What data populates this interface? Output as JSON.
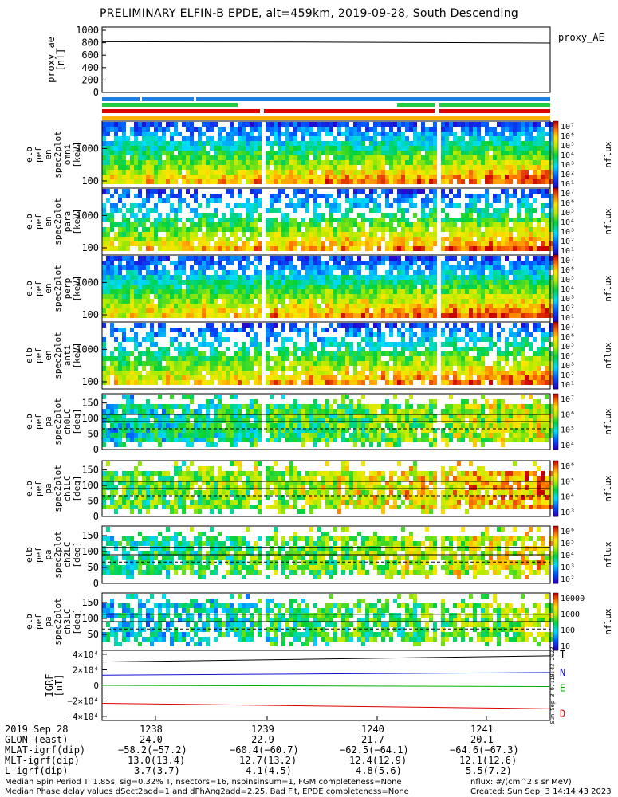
{
  "title": "PRELIMINARY ELFIN-B EPDE, alt=459km, 2019-09-28, South Descending",
  "colors": {
    "blue": "#1e7fe0",
    "green": "#22cc44",
    "red": "#dd0000",
    "N": "#1010d0",
    "E": "#00b000",
    "D": "#dd0000",
    "orange": "#ffb000"
  },
  "chart_data": [
    {
      "type": "line",
      "panel": "proxy_ae",
      "ylabel_lines": [
        "proxy_ae",
        "[nT]"
      ],
      "legend": "proxy_AE",
      "yticks": [
        "0",
        "200",
        "400",
        "600",
        "800",
        "1000"
      ],
      "ylim": [
        0,
        1000
      ],
      "series": [
        {
          "x": [
            0,
            0.5,
            1
          ],
          "values": [
            815,
            810,
            795
          ]
        }
      ]
    },
    {
      "type": "heatmap",
      "panel": "en-all",
      "ylabel_lines": [
        "elb",
        "pef",
        "en",
        "spec2plot",
        "omni",
        "[keV]"
      ],
      "yticks": [
        "100",
        "1000"
      ],
      "yscale": "log",
      "ylim": [
        60,
        7000
      ],
      "cbar_ticks": [
        "10⁷",
        "10⁶",
        "10⁵",
        "10⁴",
        "10³",
        "10²",
        "10¹"
      ],
      "cbar_label": "nflux"
    },
    {
      "type": "heatmap",
      "panel": "en-para",
      "ylabel_lines": [
        "elb",
        "pef",
        "en",
        "spec2plot",
        "para",
        "[keV]"
      ],
      "yticks": [
        "100",
        "1000"
      ],
      "yscale": "log",
      "ylim": [
        60,
        7000
      ],
      "cbar_ticks": [
        "10⁷",
        "10⁶",
        "10⁵",
        "10⁴",
        "10³",
        "10²",
        "10¹"
      ],
      "cbar_label": "nflux"
    },
    {
      "type": "heatmap",
      "panel": "en-perp",
      "ylabel_lines": [
        "elb",
        "pef",
        "en",
        "spec2plot",
        "perp",
        "[keV]"
      ],
      "yticks": [
        "100",
        "1000"
      ],
      "yscale": "log",
      "ylim": [
        60,
        7000
      ],
      "cbar_ticks": [
        "10⁷",
        "10⁶",
        "10⁵",
        "10⁴",
        "10³",
        "10²",
        "10¹"
      ],
      "cbar_label": "nflux"
    },
    {
      "type": "heatmap",
      "panel": "en-anti",
      "ylabel_lines": [
        "elb",
        "pef",
        "en",
        "spec2plot",
        "anti",
        "[keV]"
      ],
      "yticks": [
        "100",
        "1000"
      ],
      "yscale": "log",
      "ylim": [
        60,
        7000
      ],
      "cbar_ticks": [
        "10⁷",
        "10⁶",
        "10⁵",
        "10⁴",
        "10³",
        "10²",
        "10¹"
      ],
      "cbar_label": "nflux"
    },
    {
      "type": "heatmap",
      "panel": "pa-ch0",
      "ylabel_lines": [
        "elb",
        "pef",
        "pa",
        "spec2plot",
        "ch0LC",
        "[deg]"
      ],
      "yticks": [
        "0",
        "50",
        "100",
        "150"
      ],
      "ylim": [
        0,
        180
      ],
      "cbar_ticks": [
        "10⁷",
        "10⁶",
        "10⁵",
        "10⁴"
      ],
      "cbar_label": "nflux"
    },
    {
      "type": "heatmap",
      "panel": "pa-ch1",
      "ylabel_lines": [
        "elb",
        "pef",
        "pa",
        "spec2plot",
        "ch1LC",
        "[deg]"
      ],
      "yticks": [
        "0",
        "50",
        "100",
        "150"
      ],
      "ylim": [
        0,
        180
      ],
      "cbar_ticks": [
        "10⁶",
        "10⁵",
        "10⁴",
        "10³"
      ],
      "cbar_label": "nflux"
    },
    {
      "type": "heatmap",
      "panel": "pa-ch2",
      "ylabel_lines": [
        "elb",
        "pef",
        "pa",
        "spec2plot",
        "ch2LC",
        "[deg]"
      ],
      "yticks": [
        "0",
        "50",
        "100",
        "150"
      ],
      "ylim": [
        0,
        180
      ],
      "cbar_ticks": [
        "10⁶",
        "10⁵",
        "10⁴",
        "10³",
        "10²"
      ],
      "cbar_label": "nflux"
    },
    {
      "type": "heatmap",
      "panel": "pa-ch3",
      "ylabel_lines": [
        "elb",
        "pef",
        "pa",
        "spec2plot",
        "ch3LC",
        "[deg]"
      ],
      "yticks": [
        "50",
        "100",
        "150"
      ],
      "ylim": [
        0,
        180
      ],
      "cbar_ticks": [
        "10000",
        "1000",
        "100",
        "10"
      ],
      "cbar_label": "nflux"
    },
    {
      "type": "line",
      "panel": "igrf",
      "ylabel_lines": [
        "IGRF",
        "[nT]"
      ],
      "yticks": [
        "−4×10⁴",
        "−2×10⁴",
        "0",
        "2×10⁴",
        "4×10⁴"
      ],
      "ylim": [
        -45000,
        45000
      ],
      "series": [
        {
          "name": "T",
          "x": [
            0,
            1
          ],
          "values": [
            30000,
            38000
          ]
        },
        {
          "name": "N",
          "x": [
            0,
            1
          ],
          "values": [
            13000,
            16500
          ]
        },
        {
          "name": "E",
          "x": [
            0,
            1
          ],
          "values": [
            0,
            -1500
          ]
        },
        {
          "name": "D",
          "x": [
            0,
            1
          ],
          "values": [
            -23000,
            -30000
          ]
        }
      ],
      "side_text": "Sun Sep  3 07:18:43 2023"
    }
  ],
  "xaxis": {
    "rows": [
      {
        "label": "2019 Sep 28",
        "values": [
          "1238",
          "1239",
          "1240",
          "1241"
        ]
      },
      {
        "label": "GLON (east)",
        "values": [
          "24.0",
          "22.9",
          "21.7",
          "20.1"
        ]
      },
      {
        "label": "MLAT-igrf(dip)",
        "values": [
          "−58.2(−57.2)",
          "−60.4(−60.7)",
          "−62.5(−64.1)",
          "−64.6(−67.3)"
        ]
      },
      {
        "label": "MLT-igrf(dip)",
        "values": [
          "13.0(13.4)",
          "12.7(13.2)",
          "12.4(12.9)",
          "12.1(12.6)"
        ]
      },
      {
        "label": "L-igrf(dip)",
        "values": [
          "3.7(3.7)",
          "4.1(4.5)",
          "4.8(5.6)",
          "5.5(7.2)"
        ]
      }
    ]
  },
  "footer": {
    "line1_left": "Median Spin Period T: 1.85s, sig=0.32% T, nsectors=16, nspinsinsum=1, FGM completeness=None",
    "line2_left": "Median Phase delay values dSect2add=1 and dPhAng2add=2.25, Bad Fit, EPDE completeness=None",
    "line1_right": "nflux: #/(cm^2 s sr MeV)",
    "line2_right": "Created: Sun Sep  3 14:14:43 2023"
  }
}
